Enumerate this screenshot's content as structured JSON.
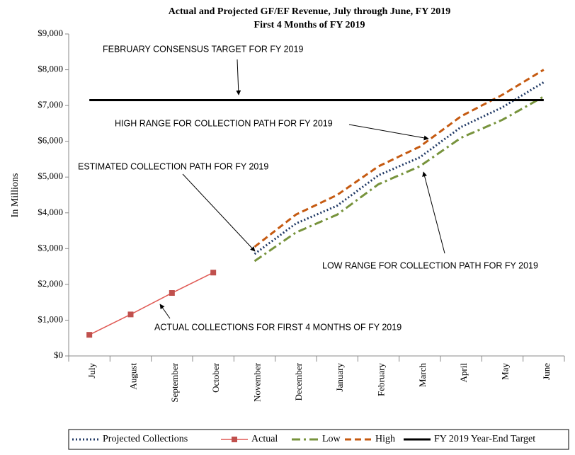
{
  "chart_data": {
    "type": "line",
    "title": "Actual and Projected GF/EF Revenue, July through June, FY 2019",
    "subtitle": "First 4 Months of FY 2019",
    "ylabel": "In Millions",
    "categories": [
      "July",
      "August",
      "September",
      "October",
      "November",
      "December",
      "January",
      "February",
      "March",
      "April",
      "May",
      "June"
    ],
    "series": [
      {
        "name": "Projected Collections",
        "color": "#1f3864",
        "style": "dotted",
        "values": [
          null,
          null,
          null,
          null,
          2850,
          3700,
          4200,
          5050,
          5550,
          6400,
          6950,
          7650
        ]
      },
      {
        "name": "Actual",
        "color": "#e05a55",
        "style": "solid",
        "marker": "square",
        "values": [
          590,
          1160,
          1760,
          2330,
          null,
          null,
          null,
          null,
          null,
          null,
          null,
          null
        ]
      },
      {
        "name": "Low",
        "color": "#77933c",
        "style": "dashdot",
        "values": [
          null,
          null,
          null,
          null,
          2650,
          3450,
          3950,
          4800,
          5300,
          6100,
          6600,
          7250
        ]
      },
      {
        "name": "High",
        "color": "#c55a11",
        "style": "dashed",
        "values": [
          null,
          null,
          null,
          null,
          3050,
          3950,
          4500,
          5300,
          5850,
          6700,
          7300,
          8000
        ]
      },
      {
        "name": "FY 2019 Year-End Target",
        "color": "#000000",
        "style": "solid",
        "values": [
          7150,
          7150,
          7150,
          7150,
          7150,
          7150,
          7150,
          7150,
          7150,
          7150,
          7150,
          7150
        ]
      }
    ],
    "ylim": [
      0,
      9000
    ],
    "yticks": [
      {
        "value": 0,
        "label": "$0"
      },
      {
        "value": 1000,
        "label": "$1,000"
      },
      {
        "value": 2000,
        "label": "$2,000"
      },
      {
        "value": 3000,
        "label": "$3,000"
      },
      {
        "value": 4000,
        "label": "$4,000"
      },
      {
        "value": 5000,
        "label": "$5,000"
      },
      {
        "value": 6000,
        "label": "$6,000"
      },
      {
        "value": 7000,
        "label": "$7,000"
      },
      {
        "value": 8000,
        "label": "$8,000"
      },
      {
        "value": 9000,
        "label": "$9,000"
      }
    ],
    "grid": false,
    "legend": "bottom",
    "annotations": [
      "FEBRUARY CONSENSUS TARGET FOR FY 2019",
      "HIGH RANGE FOR COLLECTION PATH FOR FY 2019",
      "ESTIMATED COLLECTION PATH FOR FY 2019",
      "LOW RANGE FOR COLLECTION PATH FOR FY 2019",
      "ACTUAL COLLECTIONS FOR FIRST 4 MONTHS OF FY 2019"
    ]
  }
}
